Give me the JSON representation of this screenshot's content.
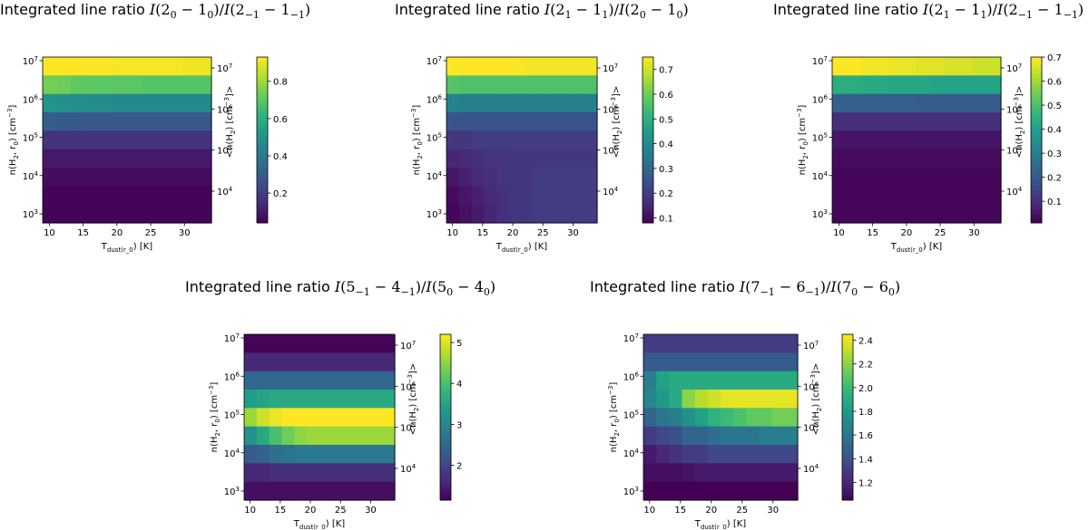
{
  "chart_data": [
    {
      "type": "heatmap",
      "title": "Integrated line ratio I(2_0 - 1_0)/I(2_-1 - 1_-1)",
      "title_prefix": "Integrated line ratio ",
      "title_math": [
        {
          "t": "I",
          "s": "m"
        },
        {
          "t": "(2"
        },
        {
          "t": "0",
          "sub": 1
        },
        {
          "t": " − 1"
        },
        {
          "t": "0",
          "sub": 1
        },
        {
          "t": ")/"
        },
        {
          "t": "I",
          "s": "m"
        },
        {
          "t": "(2"
        },
        {
          "t": "−1",
          "sub": 1
        },
        {
          "t": " − 1"
        },
        {
          "t": "−1",
          "sub": 1
        },
        {
          "t": ")"
        }
      ],
      "xlabel": "T_dust(r_0) [K]",
      "ylabel": "n(H_2, r_0) [cm^-3]",
      "ylabel_right": "<n(H_2) [cm^-3]>",
      "x_range": [
        9,
        34
      ],
      "x_ticks": [
        "10",
        "15",
        "20",
        "25",
        "30"
      ],
      "y_ticks": [
        "10^3",
        "10^4",
        "10^5",
        "10^6",
        "10^7"
      ],
      "y2_ticks": [
        "10^4",
        "10^5",
        "10^6",
        "10^7"
      ],
      "cbar_range": [
        0.04,
        0.93
      ],
      "cbar_ticks": [
        "0.2",
        "0.4",
        "0.6",
        "0.8"
      ],
      "rows_from_top": [
        [
          0.93,
          0.93,
          0.93,
          0.93,
          0.93,
          0.92,
          0.92,
          0.92,
          0.92,
          0.92,
          0.91,
          0.91
        ],
        [
          0.74,
          0.73,
          0.71,
          0.7,
          0.7,
          0.7,
          0.7,
          0.69,
          0.69,
          0.69,
          0.69,
          0.69
        ],
        [
          0.5,
          0.49,
          0.48,
          0.47,
          0.47,
          0.46,
          0.46,
          0.46,
          0.46,
          0.46,
          0.46,
          0.46
        ],
        [
          0.3,
          0.29,
          0.29,
          0.28,
          0.28,
          0.28,
          0.28,
          0.28,
          0.28,
          0.28,
          0.28,
          0.28
        ],
        [
          0.17,
          0.17,
          0.17,
          0.17,
          0.17,
          0.17,
          0.17,
          0.17,
          0.17,
          0.17,
          0.17,
          0.17
        ],
        [
          0.1,
          0.1,
          0.1,
          0.1,
          0.1,
          0.1,
          0.1,
          0.1,
          0.1,
          0.1,
          0.1,
          0.1
        ],
        [
          0.07,
          0.07,
          0.07,
          0.07,
          0.07,
          0.07,
          0.07,
          0.07,
          0.07,
          0.07,
          0.07,
          0.07
        ],
        [
          0.05,
          0.05,
          0.05,
          0.05,
          0.05,
          0.05,
          0.05,
          0.05,
          0.05,
          0.05,
          0.05,
          0.05
        ],
        [
          0.05,
          0.05,
          0.05,
          0.05,
          0.05,
          0.05,
          0.05,
          0.05,
          0.05,
          0.05,
          0.05,
          0.05
        ]
      ]
    },
    {
      "type": "heatmap",
      "title": "Integrated line ratio I(2_1 - 1_1)/I(2_0 - 1_0)",
      "title_prefix": "Integrated line ratio ",
      "title_math": [
        {
          "t": "I",
          "s": "m"
        },
        {
          "t": "(2"
        },
        {
          "t": "1",
          "sub": 1
        },
        {
          "t": " − 1"
        },
        {
          "t": "1",
          "sub": 1
        },
        {
          "t": ")/"
        },
        {
          "t": "I",
          "s": "m"
        },
        {
          "t": "(2"
        },
        {
          "t": "0",
          "sub": 1
        },
        {
          "t": " − 1"
        },
        {
          "t": "0",
          "sub": 1
        },
        {
          "t": ")"
        }
      ],
      "xlabel": "T_dust(r_0) [K]",
      "ylabel": "n(H_2, r_0) [cm^-3]",
      "ylabel_right": "<n(H_2) [cm^-3]>",
      "x_range": [
        9,
        34
      ],
      "x_ticks": [
        "10",
        "15",
        "20",
        "25",
        "30"
      ],
      "y_ticks": [
        "10^3",
        "10^4",
        "10^5",
        "10^6",
        "10^7"
      ],
      "y2_ticks": [
        "10^4",
        "10^5",
        "10^6",
        "10^7"
      ],
      "cbar_range": [
        0.08,
        0.75
      ],
      "cbar_ticks": [
        "0.1",
        "0.2",
        "0.3",
        "0.4",
        "0.5",
        "0.6",
        "0.7"
      ],
      "rows_from_top": [
        [
          0.75,
          0.75,
          0.75,
          0.75,
          0.75,
          0.75,
          0.74,
          0.74,
          0.74,
          0.74,
          0.74,
          0.74
        ],
        [
          0.57,
          0.56,
          0.56,
          0.56,
          0.56,
          0.56,
          0.56,
          0.56,
          0.56,
          0.56,
          0.56,
          0.56
        ],
        [
          0.38,
          0.37,
          0.37,
          0.37,
          0.37,
          0.37,
          0.37,
          0.37,
          0.37,
          0.37,
          0.37,
          0.37
        ],
        [
          0.25,
          0.25,
          0.25,
          0.25,
          0.25,
          0.25,
          0.25,
          0.25,
          0.25,
          0.25,
          0.25,
          0.25
        ],
        [
          0.19,
          0.19,
          0.2,
          0.2,
          0.2,
          0.2,
          0.2,
          0.2,
          0.2,
          0.2,
          0.2,
          0.2
        ],
        [
          0.15,
          0.16,
          0.17,
          0.18,
          0.18,
          0.19,
          0.19,
          0.19,
          0.19,
          0.19,
          0.19,
          0.19
        ],
        [
          0.12,
          0.14,
          0.16,
          0.17,
          0.18,
          0.19,
          0.19,
          0.2,
          0.2,
          0.2,
          0.2,
          0.2
        ],
        [
          0.1,
          0.12,
          0.14,
          0.16,
          0.17,
          0.18,
          0.19,
          0.2,
          0.2,
          0.2,
          0.2,
          0.2
        ],
        [
          0.09,
          0.11,
          0.13,
          0.15,
          0.17,
          0.18,
          0.19,
          0.2,
          0.2,
          0.2,
          0.2,
          0.2
        ]
      ]
    },
    {
      "type": "heatmap",
      "title": "Integrated line ratio I(2_1 - 1_1)/I(2_-1 - 1_-1)",
      "title_prefix": "Integrated line ratio ",
      "title_math": [
        {
          "t": "I",
          "s": "m"
        },
        {
          "t": "(2"
        },
        {
          "t": "1",
          "sub": 1
        },
        {
          "t": " − 1"
        },
        {
          "t": "1",
          "sub": 1
        },
        {
          "t": ")/"
        },
        {
          "t": "I",
          "s": "m"
        },
        {
          "t": "(2"
        },
        {
          "t": "−1",
          "sub": 1
        },
        {
          "t": " − 1"
        },
        {
          "t": "−1",
          "sub": 1
        },
        {
          "t": ")"
        }
      ],
      "xlabel": "T_dust(r_0) [K]",
      "ylabel": "n(H_2, r_0) [cm^-3]",
      "ylabel_right": "<n(H_2) [cm^-3]>",
      "x_range": [
        9,
        34
      ],
      "x_ticks": [
        "10",
        "15",
        "20",
        "25",
        "30"
      ],
      "y_ticks": [
        "10^3",
        "10^4",
        "10^5",
        "10^6",
        "10^7"
      ],
      "y2_ticks": [
        "10^4",
        "10^5",
        "10^6",
        "10^7"
      ],
      "cbar_range": [
        0.01,
        0.7
      ],
      "cbar_ticks": [
        "0.1",
        "0.2",
        "0.3",
        "0.4",
        "0.5",
        "0.6",
        "0.7"
      ],
      "rows_from_top": [
        [
          0.7,
          0.7,
          0.69,
          0.69,
          0.68,
          0.68,
          0.67,
          0.67,
          0.66,
          0.66,
          0.65,
          0.65
        ],
        [
          0.44,
          0.44,
          0.43,
          0.43,
          0.42,
          0.42,
          0.42,
          0.41,
          0.41,
          0.41,
          0.41,
          0.41
        ],
        [
          0.22,
          0.22,
          0.22,
          0.22,
          0.22,
          0.22,
          0.21,
          0.21,
          0.21,
          0.21,
          0.21,
          0.21
        ],
        [
          0.1,
          0.1,
          0.1,
          0.1,
          0.1,
          0.1,
          0.1,
          0.1,
          0.1,
          0.1,
          0.1,
          0.1
        ],
        [
          0.05,
          0.05,
          0.05,
          0.05,
          0.05,
          0.05,
          0.05,
          0.05,
          0.05,
          0.05,
          0.05,
          0.05
        ],
        [
          0.03,
          0.03,
          0.03,
          0.03,
          0.03,
          0.03,
          0.03,
          0.03,
          0.03,
          0.03,
          0.03,
          0.03
        ],
        [
          0.02,
          0.02,
          0.02,
          0.02,
          0.02,
          0.02,
          0.02,
          0.02,
          0.02,
          0.02,
          0.02,
          0.02
        ],
        [
          0.02,
          0.02,
          0.02,
          0.02,
          0.02,
          0.02,
          0.02,
          0.02,
          0.02,
          0.02,
          0.02,
          0.02
        ],
        [
          0.02,
          0.02,
          0.02,
          0.02,
          0.02,
          0.02,
          0.02,
          0.02,
          0.02,
          0.02,
          0.02,
          0.02
        ]
      ]
    },
    {
      "type": "heatmap",
      "title": "Integrated line ratio I(5_-1 - 4_-1)/I(5_0 - 4_0)",
      "title_prefix": "Integrated line ratio ",
      "title_math": [
        {
          "t": "I",
          "s": "m"
        },
        {
          "t": "(5"
        },
        {
          "t": "−1",
          "sub": 1
        },
        {
          "t": " − 4"
        },
        {
          "t": "−1",
          "sub": 1
        },
        {
          "t": ")/"
        },
        {
          "t": "I",
          "s": "m"
        },
        {
          "t": "(5"
        },
        {
          "t": "0",
          "sub": 1
        },
        {
          "t": " − 4"
        },
        {
          "t": "0",
          "sub": 1
        },
        {
          "t": ")"
        }
      ],
      "xlabel": "T_dust(r_0) [K]",
      "ylabel": "n(H_2, r_0) [cm^-3]",
      "ylabel_right": "<n(H_2) [cm^-3]>",
      "x_range": [
        9,
        34
      ],
      "x_ticks": [
        "10",
        "15",
        "20",
        "25",
        "30"
      ],
      "y_ticks": [
        "10^3",
        "10^4",
        "10^5",
        "10^6",
        "10^7"
      ],
      "y2_ticks": [
        "10^4",
        "10^5",
        "10^6",
        "10^7"
      ],
      "cbar_range": [
        1.15,
        5.2
      ],
      "cbar_ticks": [
        "2",
        "3",
        "4",
        "5"
      ],
      "rows_from_top": [
        [
          1.2,
          1.2,
          1.2,
          1.2,
          1.2,
          1.2,
          1.2,
          1.2,
          1.2,
          1.2,
          1.2,
          1.2
        ],
        [
          1.6,
          1.6,
          1.6,
          1.6,
          1.6,
          1.6,
          1.6,
          1.6,
          1.6,
          1.6,
          1.6,
          1.6
        ],
        [
          2.5,
          2.5,
          2.5,
          2.5,
          2.5,
          2.5,
          2.5,
          2.5,
          2.5,
          2.5,
          2.5,
          2.5
        ],
        [
          3.4,
          3.5,
          3.6,
          3.6,
          3.6,
          3.6,
          3.6,
          3.6,
          3.6,
          3.6,
          3.6,
          3.6
        ],
        [
          4.6,
          4.9,
          5.1,
          5.2,
          5.2,
          5.2,
          5.2,
          5.2,
          5.2,
          5.2,
          5.2,
          5.2
        ],
        [
          3.2,
          3.6,
          4.0,
          4.3,
          4.5,
          4.6,
          4.6,
          4.6,
          4.6,
          4.6,
          4.6,
          4.6
        ],
        [
          2.3,
          2.4,
          2.6,
          2.7,
          2.8,
          2.8,
          2.8,
          2.8,
          2.8,
          2.8,
          2.8,
          2.8
        ],
        [
          1.6,
          1.6,
          1.7,
          1.7,
          1.7,
          1.7,
          1.7,
          1.7,
          1.7,
          1.7,
          1.7,
          1.7
        ],
        [
          1.3,
          1.3,
          1.3,
          1.3,
          1.3,
          1.3,
          1.3,
          1.3,
          1.3,
          1.3,
          1.3,
          1.3
        ]
      ]
    },
    {
      "type": "heatmap",
      "title": "Integrated line ratio I(7_-1 - 6_-1)/I(7_0 - 6_0)",
      "title_prefix": "Integrated line ratio ",
      "title_math": [
        {
          "t": "I",
          "s": "m"
        },
        {
          "t": "(7"
        },
        {
          "t": "−1",
          "sub": 1
        },
        {
          "t": " − 6"
        },
        {
          "t": "−1",
          "sub": 1
        },
        {
          "t": ")/"
        },
        {
          "t": "I",
          "s": "m"
        },
        {
          "t": "(7"
        },
        {
          "t": "0",
          "sub": 1
        },
        {
          "t": " − 6"
        },
        {
          "t": "0",
          "sub": 1
        },
        {
          "t": ")"
        }
      ],
      "xlabel": "T_dust(r_0) [K]",
      "ylabel": "n(H_2, r_0) [cm^-3]",
      "ylabel_right": "<n(H_2) [cm^-3]>",
      "x_range": [
        9,
        34
      ],
      "x_ticks": [
        "10",
        "15",
        "20",
        "25",
        "30"
      ],
      "y_ticks": [
        "10^3",
        "10^4",
        "10^5",
        "10^6",
        "10^7"
      ],
      "y2_ticks": [
        "10^4",
        "10^5",
        "10^6",
        "10^7"
      ],
      "cbar_range": [
        1.05,
        2.45
      ],
      "cbar_ticks": [
        "1.2",
        "1.4",
        "1.6",
        "1.8",
        "2.0",
        "2.2",
        "2.4"
      ],
      "rows_from_top": [
        [
          1.3,
          1.3,
          1.3,
          1.3,
          1.3,
          1.3,
          1.3,
          1.3,
          1.3,
          1.3,
          1.3,
          1.3
        ],
        [
          1.45,
          1.45,
          1.45,
          1.45,
          1.45,
          1.45,
          1.45,
          1.45,
          1.45,
          1.45,
          1.45,
          1.45
        ],
        [
          1.65,
          1.85,
          1.9,
          1.9,
          1.9,
          1.9,
          1.9,
          1.9,
          1.9,
          1.9,
          1.9,
          1.9
        ],
        [
          1.7,
          1.8,
          1.9,
          2.2,
          2.3,
          2.35,
          2.4,
          2.4,
          2.4,
          2.4,
          2.4,
          2.4
        ],
        [
          1.5,
          1.6,
          1.65,
          1.75,
          1.85,
          1.95,
          2.0,
          2.05,
          2.1,
          2.1,
          2.15,
          2.15
        ],
        [
          1.3,
          1.35,
          1.4,
          1.5,
          1.5,
          1.55,
          1.6,
          1.6,
          1.6,
          1.65,
          1.65,
          1.65
        ],
        [
          1.15,
          1.2,
          1.25,
          1.3,
          1.3,
          1.35,
          1.35,
          1.35,
          1.35,
          1.35,
          1.35,
          1.35
        ],
        [
          1.1,
          1.1,
          1.1,
          1.12,
          1.15,
          1.15,
          1.15,
          1.15,
          1.15,
          1.15,
          1.15,
          1.15
        ],
        [
          1.05,
          1.05,
          1.05,
          1.05,
          1.05,
          1.05,
          1.05,
          1.05,
          1.05,
          1.05,
          1.05,
          1.05
        ]
      ]
    }
  ]
}
